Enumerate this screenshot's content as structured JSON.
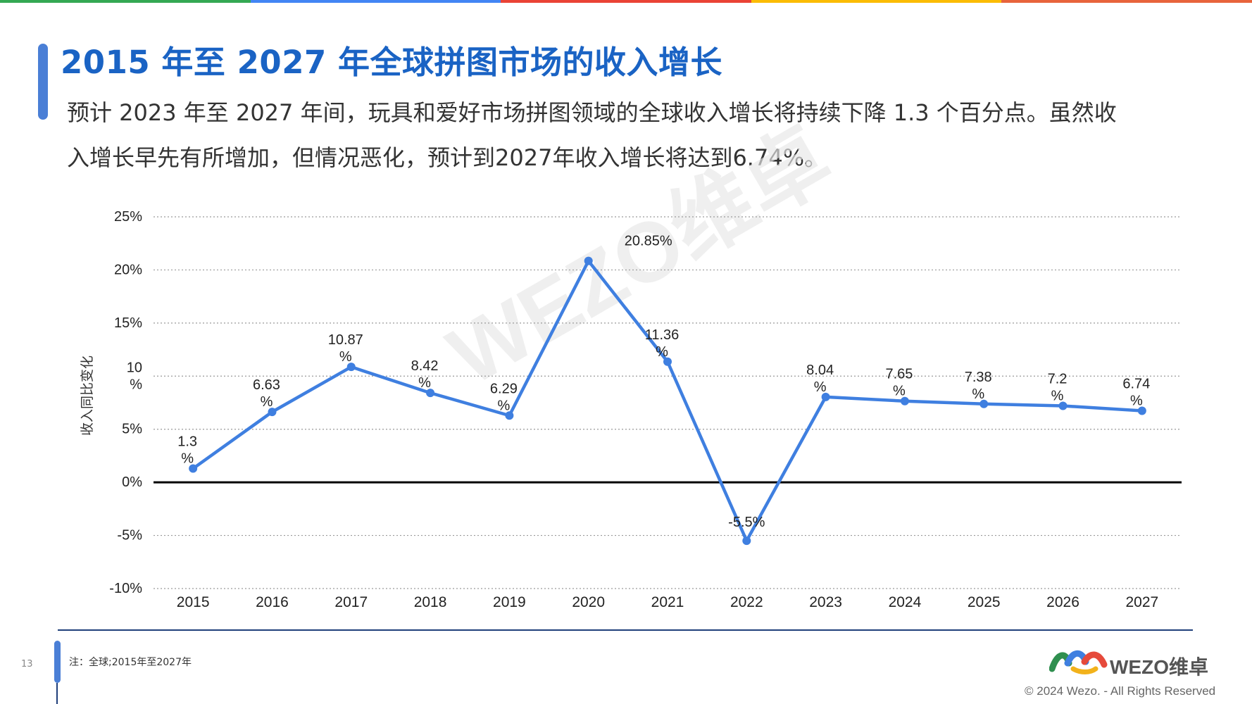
{
  "header": {
    "title": "2015 年至 2027 年全球拼图市场的收入增长",
    "subtitle": "预计 2023 年至 2027 年间，玩具和爱好市场拼图领域的全球收入增长将持续下降 1.3 个百分点。虽然收入增长早先有所增加，但情况恶化，预计到2027年收入增长将达到6.74%。"
  },
  "colors": {
    "top_bar": [
      "#34a853",
      "#4285f4",
      "#ea4335",
      "#fbbc05",
      "#e8643c"
    ],
    "title": "#1a63c4",
    "line": "#3f7fe0",
    "zero_line": "#000000"
  },
  "chart_data": {
    "type": "line",
    "ylabel": "收入同比变化",
    "x": [
      "2015",
      "2016",
      "2017",
      "2018",
      "2019",
      "2020",
      "2021",
      "2022",
      "2023",
      "2024",
      "2025",
      "2026",
      "2027"
    ],
    "series": [
      {
        "values": [
          1.3,
          6.63,
          10.87,
          8.42,
          6.29,
          20.85,
          11.36,
          -5.5,
          8.04,
          7.65,
          7.38,
          7.2,
          6.74
        ]
      }
    ],
    "data_labels": [
      "1.3\n%",
      "6.63\n%",
      "10.87\n%",
      "8.42\n%",
      "6.29\n%",
      "20.85%",
      "11.36\n%",
      "-5.5%",
      "8.04\n%",
      "7.65\n%",
      "7.38\n%",
      "7.2\n%",
      "6.74\n%"
    ],
    "y_ticks": [
      {
        "value": 25,
        "label": "25%"
      },
      {
        "value": 20,
        "label": "20%"
      },
      {
        "value": 15,
        "label": "15%"
      },
      {
        "value": 10,
        "label": "10\n%"
      },
      {
        "value": 5,
        "label": "5%"
      },
      {
        "value": 0,
        "label": "0%"
      },
      {
        "value": -5,
        "label": "-5%"
      },
      {
        "value": -10,
        "label": "-10%"
      }
    ],
    "ylim": [
      -10,
      25
    ],
    "grid": "dotted horizontal",
    "legend": "none"
  },
  "watermark": "WEZO维卓",
  "footer": {
    "page_number": "13",
    "note": "注：全球;2015年至2027年",
    "logo_text": "WEZO维卓",
    "copyright": "© 2024 Wezo. - All Rights Reserved"
  }
}
